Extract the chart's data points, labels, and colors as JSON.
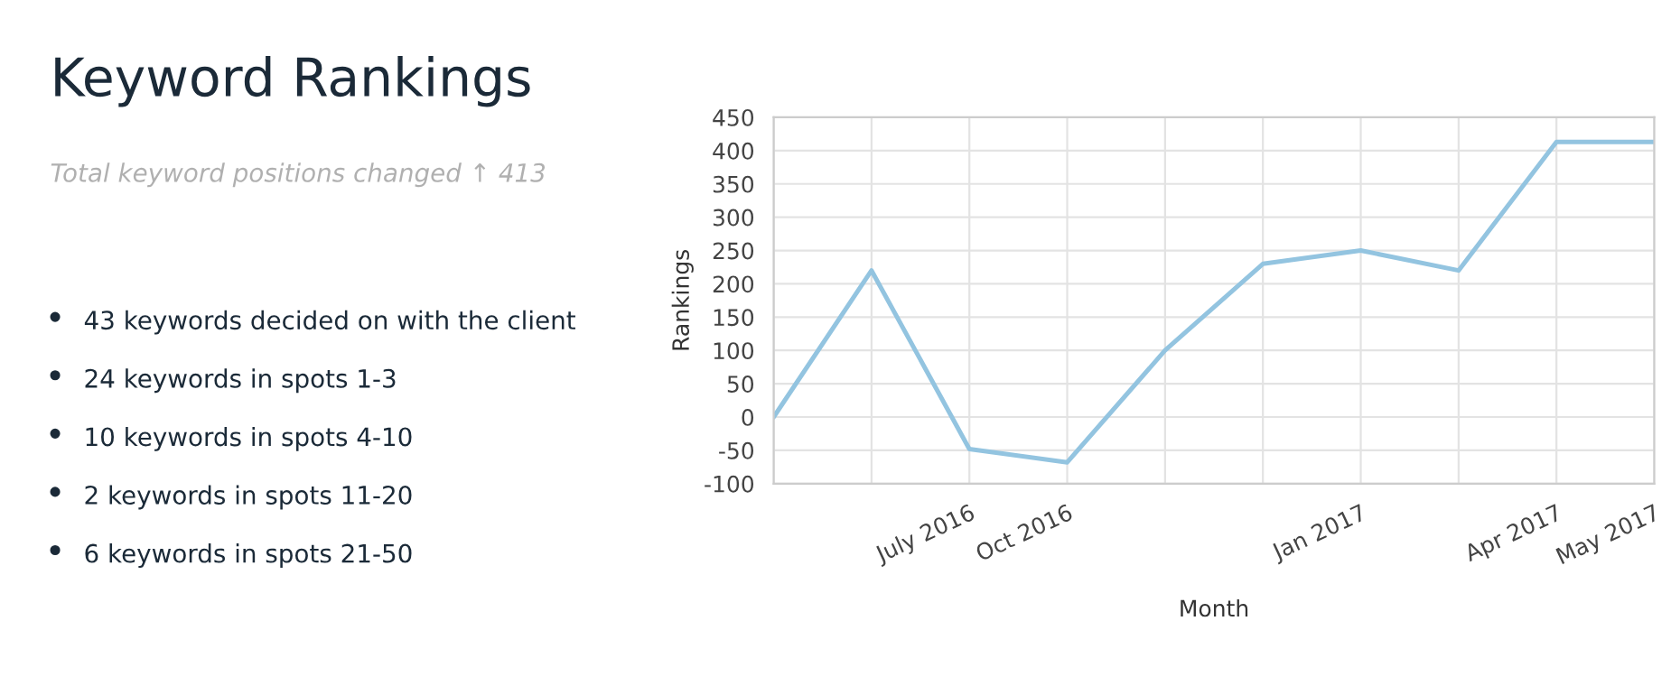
{
  "chart_data": {
    "type": "line",
    "title": "Keyword Rankings",
    "subtitle": "Total keyword positions changed ↑ 413",
    "annotations": [
      "43 keywords decided on with the client",
      "24 keywords in spots 1-3",
      "10 keywords in spots 4-10",
      "2 keywords in spots 11-20",
      "6 keywords in spots 21-50"
    ],
    "xlabel": "Month",
    "ylabel": "Rankings",
    "categories": [
      null,
      null,
      "July 2016",
      "Oct 2016",
      null,
      null,
      "Jan 2017",
      null,
      "Apr 2017",
      "May 2017"
    ],
    "series": [
      {
        "color": "#93c4e0",
        "values": [
          0,
          220,
          -48,
          -68,
          100,
          230,
          250,
          220,
          413,
          413
        ]
      }
    ],
    "ylim": [
      -100,
      450
    ],
    "yticks": [
      -100,
      -50,
      0,
      50,
      100,
      150,
      200,
      250,
      300,
      350,
      400,
      450
    ],
    "grid": true,
    "marker": "none",
    "line_style": "solid"
  }
}
